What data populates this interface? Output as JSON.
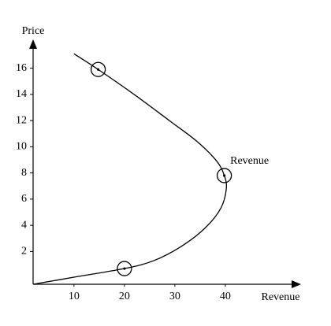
{
  "chart_data": {
    "type": "line",
    "x_label": "Revenue",
    "y_label": "Price",
    "annotation": "Revenue",
    "x": [
      10,
      14.8,
      21.9,
      28.9,
      34.4,
      38.3,
      39.8,
      40.2,
      39.1,
      36.0,
      31.3,
      25.8,
      20.0,
      10.9,
      1.9
    ],
    "values": [
      17.1,
      15.9,
      14.0,
      12.0,
      10.4,
      8.9,
      7.8,
      6.8,
      5.3,
      3.8,
      2.4,
      1.3,
      0.7,
      0.1,
      -0.5
    ],
    "marker_indices": [
      1,
      6,
      12
    ],
    "color": "#000000",
    "xlim": [
      1.9,
      54.7
    ],
    "ylim": [
      -0.5,
      18.8
    ],
    "xticks": [
      10,
      20,
      30,
      40
    ],
    "yticks": [
      2,
      4,
      6,
      8,
      10,
      12,
      14,
      16
    ],
    "grid": false
  }
}
